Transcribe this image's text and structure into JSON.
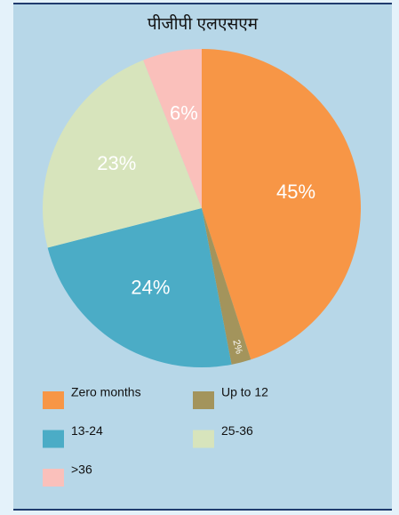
{
  "chart_data": {
    "type": "pie",
    "title": "पीजीपी एलएसएम",
    "categories": [
      "Zero months",
      "Up to 12",
      "13-24",
      "25-36",
      ">36"
    ],
    "values": [
      45,
      2,
      24,
      23,
      6
    ],
    "value_labels": [
      "45%",
      "2%",
      "24%",
      "23%",
      "6%"
    ],
    "colors": [
      "#f79646",
      "#a3945c",
      "#4bacc6",
      "#d7e4bc",
      "#fac0bb"
    ],
    "legend": "bottom"
  }
}
